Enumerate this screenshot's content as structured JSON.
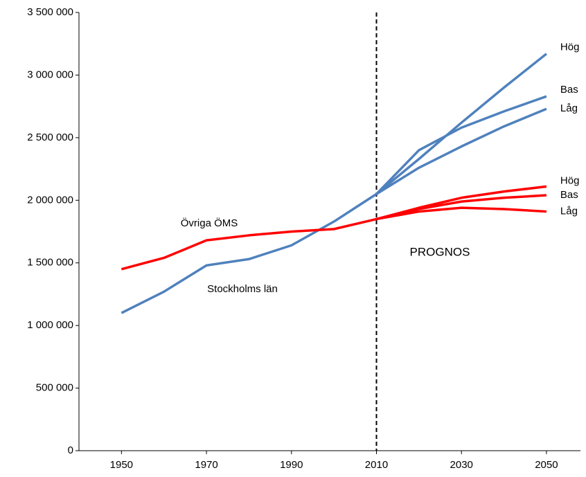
{
  "chart_data": {
    "type": "line",
    "x": [
      1950,
      1960,
      1970,
      1980,
      1990,
      2000,
      2010,
      2020,
      2030,
      2040,
      2050
    ],
    "xlim": [
      1940,
      2058
    ],
    "xticks": [
      1950,
      1970,
      1990,
      2010,
      2030,
      2050
    ],
    "ylim": [
      0,
      3500000
    ],
    "yticks": [
      0,
      {
        "value": 500000,
        "label": "500 000"
      },
      {
        "value": 1000000,
        "label": "1 000 000"
      },
      {
        "value": 1500000,
        "label": "1 500 000"
      },
      {
        "value": 2000000,
        "label": "2 000 000"
      },
      {
        "value": 2500000,
        "label": "2 500 000"
      },
      {
        "value": 3000000,
        "label": "3 000 000"
      },
      {
        "value": 3500000,
        "label": "3 500 000"
      }
    ],
    "grid": false,
    "forecast_start": 2010,
    "annotation": "PROGNOS",
    "series": [
      {
        "name": "Stockholms län",
        "color": "#4f81bd",
        "values": [
          1100000,
          1270000,
          1480000,
          1530000,
          1640000,
          1830000,
          2050000,
          null,
          null,
          null,
          null
        ]
      },
      {
        "name": "Övriga ÖMS",
        "color": "#ff0000",
        "values": [
          1450000,
          1540000,
          1680000,
          1720000,
          1750000,
          1770000,
          1850000,
          null,
          null,
          null,
          null
        ]
      },
      {
        "name": "Hög",
        "color": "#4f81bd",
        "values": [
          null,
          null,
          null,
          null,
          null,
          null,
          2050000,
          2330000,
          2620000,
          2900000,
          3170000
        ]
      },
      {
        "name": "Bas",
        "color": "#4f81bd",
        "values": [
          null,
          null,
          null,
          null,
          null,
          null,
          2050000,
          2400000,
          2580000,
          2710000,
          2830000
        ]
      },
      {
        "name": "Låg",
        "color": "#4f81bd",
        "values": [
          null,
          null,
          null,
          null,
          null,
          null,
          2050000,
          2260000,
          2430000,
          2590000,
          2730000
        ]
      },
      {
        "name": "Hög",
        "color": "#ff0000",
        "values": [
          null,
          null,
          null,
          null,
          null,
          null,
          1850000,
          1940000,
          2020000,
          2070000,
          2110000
        ]
      },
      {
        "name": "Bas",
        "color": "#ff0000",
        "values": [
          null,
          null,
          null,
          null,
          null,
          null,
          1850000,
          1930000,
          1990000,
          2020000,
          2040000
        ]
      },
      {
        "name": "Låg",
        "color": "#ff0000",
        "values": [
          null,
          null,
          null,
          null,
          null,
          null,
          1850000,
          1910000,
          1940000,
          1930000,
          1910000
        ]
      }
    ]
  }
}
